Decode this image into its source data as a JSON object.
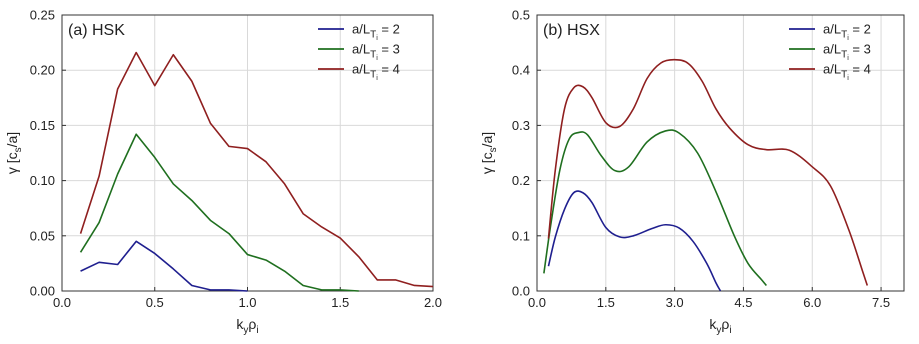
{
  "chart_data": [
    {
      "type": "line",
      "panel_label": "(a) HSK",
      "ylabel": "γ [c_s/a]",
      "xlabel": "k_y ρ_i",
      "xlim": [
        0,
        2.0
      ],
      "ylim": [
        0,
        0.25
      ],
      "xticks": [
        "0.0",
        "0.5",
        "1.0",
        "1.5",
        "2.0"
      ],
      "xtick_values": [
        0,
        0.5,
        1.0,
        1.5,
        2.0
      ],
      "yticks": [
        "0.00",
        "0.05",
        "0.10",
        "0.15",
        "0.20",
        "0.25"
      ],
      "ytick_values": [
        0,
        0.05,
        0.1,
        0.15,
        0.2,
        0.25
      ],
      "grid": true,
      "legend_position": "top-right",
      "series": [
        {
          "name": "a/L_Ti = 2",
          "name_value": "2",
          "color": "#1f1f8f",
          "x": [
            0.1,
            0.2,
            0.3,
            0.4,
            0.5,
            0.6,
            0.7,
            0.8,
            0.9,
            1.0
          ],
          "y": [
            0.018,
            0.026,
            0.024,
            0.045,
            0.034,
            0.02,
            0.005,
            0.001,
            0.001,
            0.0
          ]
        },
        {
          "name": "a/L_Ti = 3",
          "name_value": "3",
          "color": "#1f6f1f",
          "x": [
            0.1,
            0.2,
            0.3,
            0.4,
            0.5,
            0.6,
            0.7,
            0.8,
            0.9,
            1.0,
            1.1,
            1.2,
            1.3,
            1.4,
            1.5,
            1.6
          ],
          "y": [
            0.035,
            0.062,
            0.106,
            0.142,
            0.121,
            0.097,
            0.082,
            0.064,
            0.052,
            0.033,
            0.028,
            0.018,
            0.005,
            0.001,
            0.001,
            0.0
          ]
        },
        {
          "name": "a/L_Ti = 4",
          "name_value": "4",
          "color": "#8f1f1f",
          "x": [
            0.1,
            0.2,
            0.3,
            0.4,
            0.5,
            0.6,
            0.7,
            0.8,
            0.9,
            1.0,
            1.1,
            1.2,
            1.3,
            1.4,
            1.5,
            1.6,
            1.7,
            1.8,
            1.9,
            2.0
          ],
          "y": [
            0.052,
            0.104,
            0.183,
            0.216,
            0.186,
            0.214,
            0.19,
            0.152,
            0.131,
            0.129,
            0.117,
            0.097,
            0.07,
            0.058,
            0.048,
            0.031,
            0.01,
            0.01,
            0.005,
            0.004
          ]
        }
      ]
    },
    {
      "type": "line",
      "panel_label": "(b) HSX",
      "ylabel": "γ [c_s/a]",
      "xlabel": "k_y ρ_i",
      "xlim": [
        0,
        8.0
      ],
      "ylim": [
        0,
        0.5
      ],
      "xticks": [
        "0.0",
        "1.5",
        "3.0",
        "4.5",
        "6.0",
        "7.5"
      ],
      "xtick_values": [
        0,
        1.5,
        3.0,
        4.5,
        6.0,
        7.5
      ],
      "yticks": [
        "0.0",
        "0.1",
        "0.2",
        "0.3",
        "0.4",
        "0.5"
      ],
      "ytick_values": [
        0,
        0.1,
        0.2,
        0.3,
        0.4,
        0.5
      ],
      "grid": true,
      "legend_position": "top-right",
      "series": [
        {
          "name": "a/L_Ti = 2",
          "name_value": "2",
          "color": "#1f1f8f",
          "x": [
            0.25,
            0.4,
            0.6,
            0.8,
            1.0,
            1.2,
            1.5,
            1.8,
            2.1,
            2.5,
            2.8,
            3.1,
            3.4,
            3.7,
            3.9,
            4.0
          ],
          "y": [
            0.045,
            0.098,
            0.148,
            0.178,
            0.178,
            0.16,
            0.115,
            0.098,
            0.1,
            0.113,
            0.12,
            0.114,
            0.09,
            0.05,
            0.015,
            0.0
          ]
        },
        {
          "name": "a/L_Ti = 3",
          "name_value": "3",
          "color": "#1f6f1f",
          "x": [
            0.15,
            0.3,
            0.5,
            0.7,
            0.9,
            1.1,
            1.4,
            1.7,
            2.0,
            2.4,
            2.8,
            3.1,
            3.5,
            3.9,
            4.3,
            4.6,
            4.9,
            5.0
          ],
          "y": [
            0.032,
            0.12,
            0.22,
            0.275,
            0.287,
            0.283,
            0.245,
            0.218,
            0.225,
            0.27,
            0.29,
            0.286,
            0.25,
            0.18,
            0.1,
            0.05,
            0.02,
            0.01
          ]
        },
        {
          "name": "a/L_Ti = 4",
          "name_value": "4",
          "color": "#8f1f1f",
          "x": [
            0.25,
            0.4,
            0.6,
            0.8,
            1.0,
            1.2,
            1.5,
            1.8,
            2.1,
            2.4,
            2.7,
            3.0,
            3.3,
            3.6,
            3.9,
            4.2,
            4.6,
            5.0,
            5.5,
            6.0,
            6.4,
            6.8,
            7.1,
            7.2
          ],
          "y": [
            0.095,
            0.22,
            0.33,
            0.368,
            0.37,
            0.35,
            0.305,
            0.298,
            0.33,
            0.385,
            0.413,
            0.419,
            0.412,
            0.38,
            0.33,
            0.295,
            0.265,
            0.256,
            0.255,
            0.225,
            0.19,
            0.11,
            0.035,
            0.01
          ]
        }
      ]
    }
  ]
}
